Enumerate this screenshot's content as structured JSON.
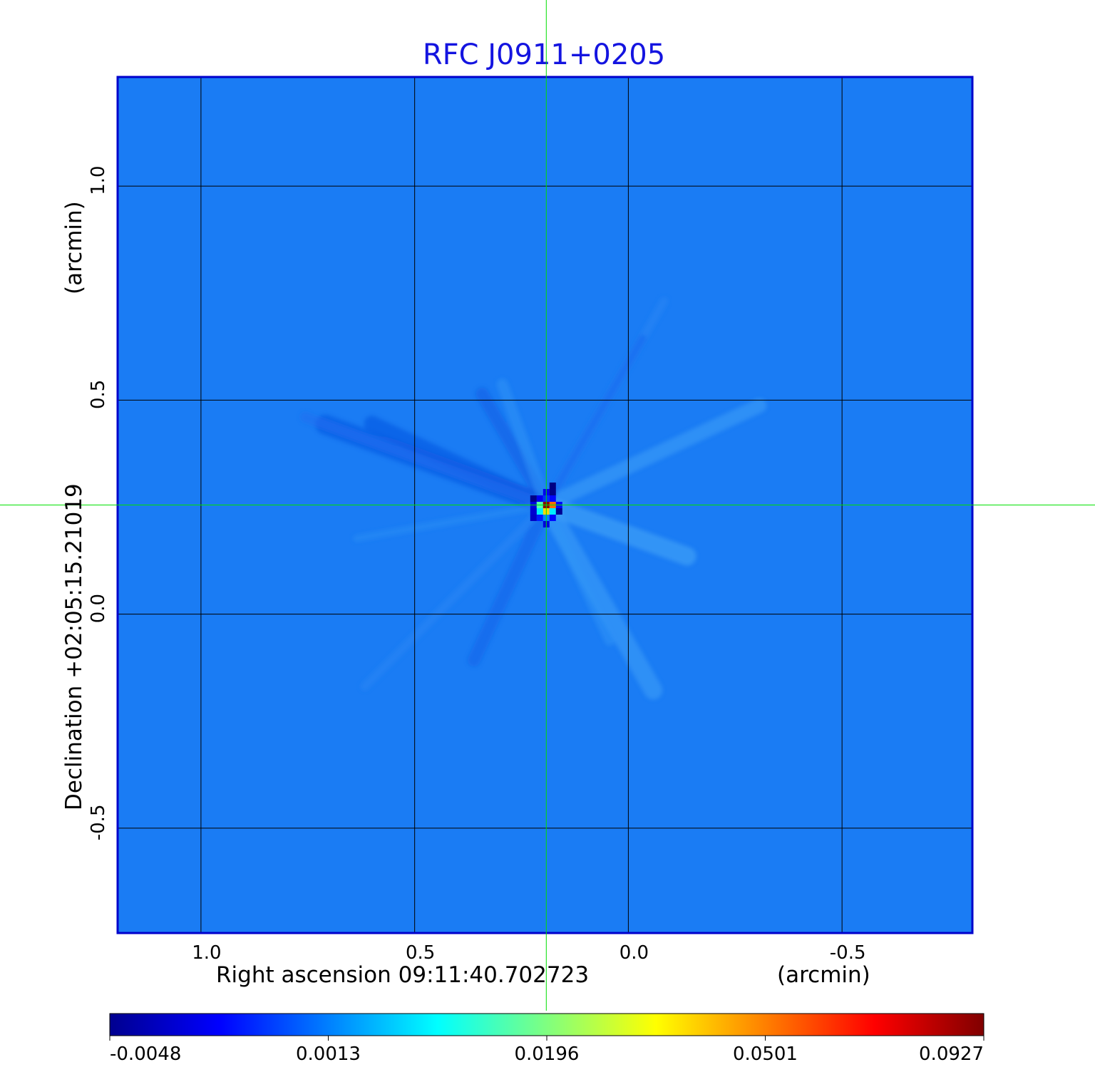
{
  "chart_data": {
    "type": "heatmap",
    "title": "RFC J0911+0205",
    "xlabel": "Right ascension  09:11:40.702723",
    "xunit": "(arcmin)",
    "ylabel": "Declination  +02:05:15.21019",
    "yunit": "(arcmin)",
    "x_ticks": [
      1.0,
      0.5,
      0.0,
      -0.5
    ],
    "x_tick_labels": [
      "1.0",
      "0.5",
      "0.0",
      "-0.5"
    ],
    "y_ticks": [
      1.0,
      0.5,
      0.0,
      -0.5
    ],
    "y_tick_labels": [
      "1.0",
      "0.5",
      "0.0",
      "-0.5"
    ],
    "xlim": [
      1.195,
      -0.805
    ],
    "ylim": [
      -0.745,
      1.255
    ],
    "x_reversed": true,
    "grid": true,
    "crosshair": {
      "x": 0.192,
      "y": 0.255,
      "color": "#00e000"
    },
    "colormap": "jet",
    "colorbar": {
      "ticks": [
        -0.0048,
        0.0013,
        0.0196,
        0.0501,
        0.0927
      ],
      "tick_labels": [
        "-0.0048",
        "0.0013",
        "0.0196",
        "0.0501",
        "0.0927"
      ],
      "range": [
        -0.0048,
        0.0927
      ],
      "orientation": "horizontal",
      "placement": "bottom"
    },
    "source": {
      "x": 0.192,
      "y": 0.255,
      "peak": 0.0927
    },
    "background_level": 0.0
  },
  "colors": {
    "title": "#1414e0",
    "frame": "#0000cc",
    "grid": "#000000",
    "crosshair": "#00e000"
  }
}
